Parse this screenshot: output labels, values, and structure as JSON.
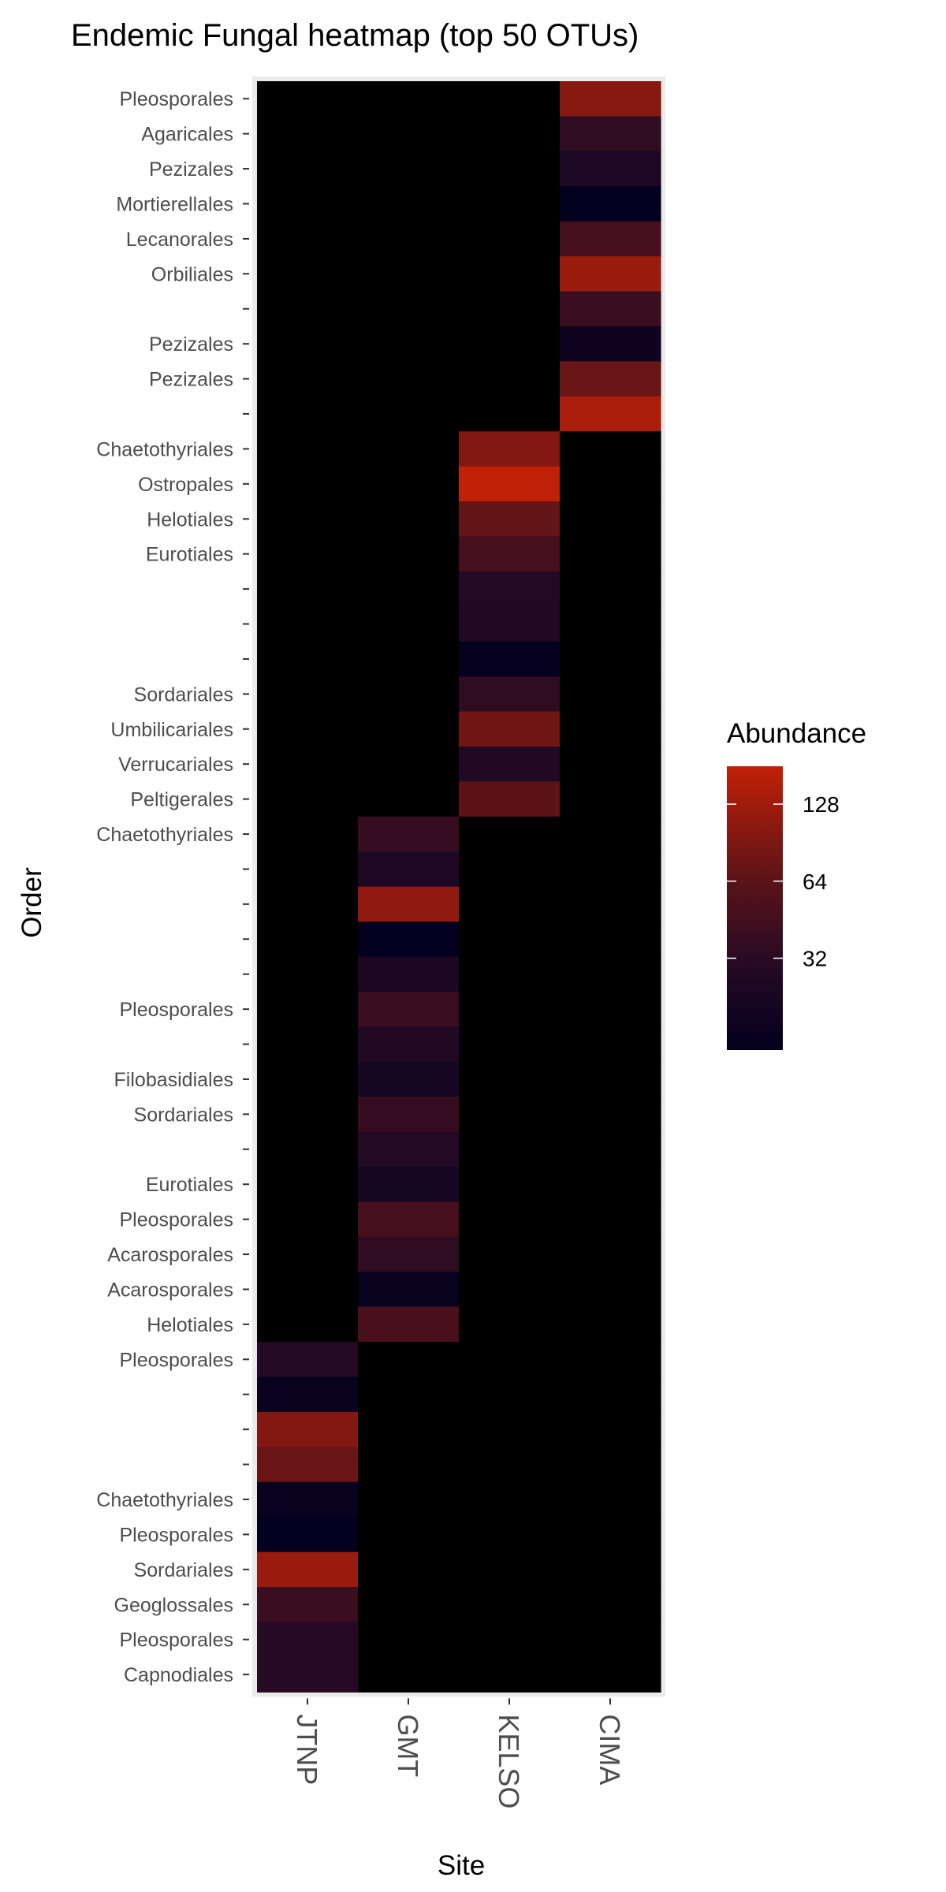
{
  "chart_data": {
    "type": "heatmap",
    "title": "Endemic Fungal heatmap (top 50 OTUs)",
    "xlabel": "Site",
    "ylabel": "Order",
    "x_categories": [
      "JTNP",
      "GMT",
      "KELSO",
      "CIMA"
    ],
    "y_labels_top_to_bottom": [
      "Pleosporales",
      "Agaricales",
      "Pezizales",
      "Mortierellales",
      "Lecanorales",
      "Orbiliales",
      "",
      "Pezizales",
      "Pezizales",
      "",
      "Chaetothyriales",
      "Ostropales",
      "Helotiales",
      "Eurotiales",
      "",
      "",
      "",
      "Sordariales",
      "Umbilicariales",
      "Verrucariales",
      "Peltigerales",
      "Chaetothyriales",
      "",
      "",
      "",
      "",
      "Pleosporales",
      "",
      "Filobasidiales",
      "Sordariales",
      "",
      "Eurotiales",
      "Pleosporales",
      "Acarosporales",
      "Acarosporales",
      "Helotiales",
      "Pleosporales",
      "",
      "",
      "",
      "Chaetothyriales",
      "Pleosporales",
      "Sordariales",
      "Geoglossales",
      "Pleosporales",
      "Capnodiales"
    ],
    "cells": [
      {
        "row": 0,
        "site": "CIMA",
        "value": 100
      },
      {
        "row": 1,
        "site": "CIMA",
        "value": 35
      },
      {
        "row": 2,
        "site": "CIMA",
        "value": 25
      },
      {
        "row": 3,
        "site": "CIMA",
        "value": 14
      },
      {
        "row": 4,
        "site": "CIMA",
        "value": 48
      },
      {
        "row": 5,
        "site": "CIMA",
        "value": 120
      },
      {
        "row": 6,
        "site": "CIMA",
        "value": 40
      },
      {
        "row": 7,
        "site": "CIMA",
        "value": 18
      },
      {
        "row": 8,
        "site": "CIMA",
        "value": 75
      },
      {
        "row": 9,
        "site": "CIMA",
        "value": 140
      },
      {
        "row": 10,
        "site": "KELSO",
        "value": 95
      },
      {
        "row": 11,
        "site": "KELSO",
        "value": 175
      },
      {
        "row": 12,
        "site": "KELSO",
        "value": 70
      },
      {
        "row": 13,
        "site": "KELSO",
        "value": 48
      },
      {
        "row": 14,
        "site": "KELSO",
        "value": 28
      },
      {
        "row": 15,
        "site": "KELSO",
        "value": 27
      },
      {
        "row": 16,
        "site": "KELSO",
        "value": 15
      },
      {
        "row": 17,
        "site": "KELSO",
        "value": 35
      },
      {
        "row": 18,
        "site": "KELSO",
        "value": 80
      },
      {
        "row": 19,
        "site": "KELSO",
        "value": 27
      },
      {
        "row": 20,
        "site": "KELSO",
        "value": 65
      },
      {
        "row": 21,
        "site": "GMT",
        "value": 38
      },
      {
        "row": 22,
        "site": "GMT",
        "value": 25
      },
      {
        "row": 23,
        "site": "GMT",
        "value": 110
      },
      {
        "row": 24,
        "site": "GMT",
        "value": 14
      },
      {
        "row": 25,
        "site": "GMT",
        "value": 24
      },
      {
        "row": 26,
        "site": "GMT",
        "value": 40
      },
      {
        "row": 27,
        "site": "GMT",
        "value": 27
      },
      {
        "row": 28,
        "site": "GMT",
        "value": 22
      },
      {
        "row": 29,
        "site": "GMT",
        "value": 38
      },
      {
        "row": 30,
        "site": "GMT",
        "value": 28
      },
      {
        "row": 31,
        "site": "GMT",
        "value": 22
      },
      {
        "row": 32,
        "site": "GMT",
        "value": 48
      },
      {
        "row": 33,
        "site": "GMT",
        "value": 35
      },
      {
        "row": 34,
        "site": "GMT",
        "value": 16
      },
      {
        "row": 35,
        "site": "GMT",
        "value": 50
      },
      {
        "row": 36,
        "site": "JTNP",
        "value": 28
      },
      {
        "row": 37,
        "site": "JTNP",
        "value": 16
      },
      {
        "row": 38,
        "site": "JTNP",
        "value": 95
      },
      {
        "row": 39,
        "site": "JTNP",
        "value": 75
      },
      {
        "row": 40,
        "site": "JTNP",
        "value": 16
      },
      {
        "row": 41,
        "site": "JTNP",
        "value": 10
      },
      {
        "row": 42,
        "site": "JTNP",
        "value": 120
      },
      {
        "row": 43,
        "site": "JTNP",
        "value": 40
      },
      {
        "row": 44,
        "site": "JTNP",
        "value": 30
      },
      {
        "row": 45,
        "site": "JTNP",
        "value": 30
      }
    ],
    "zero_color": "#000000",
    "legend": {
      "title": "Abundance",
      "scale": "log2",
      "ticks": [
        32,
        64,
        128
      ],
      "range": [
        14,
        180
      ],
      "low_color": "#02001e",
      "high_color": "#c22006",
      "placement": "right"
    },
    "panel_background": "#ebebeb",
    "grid": true
  }
}
